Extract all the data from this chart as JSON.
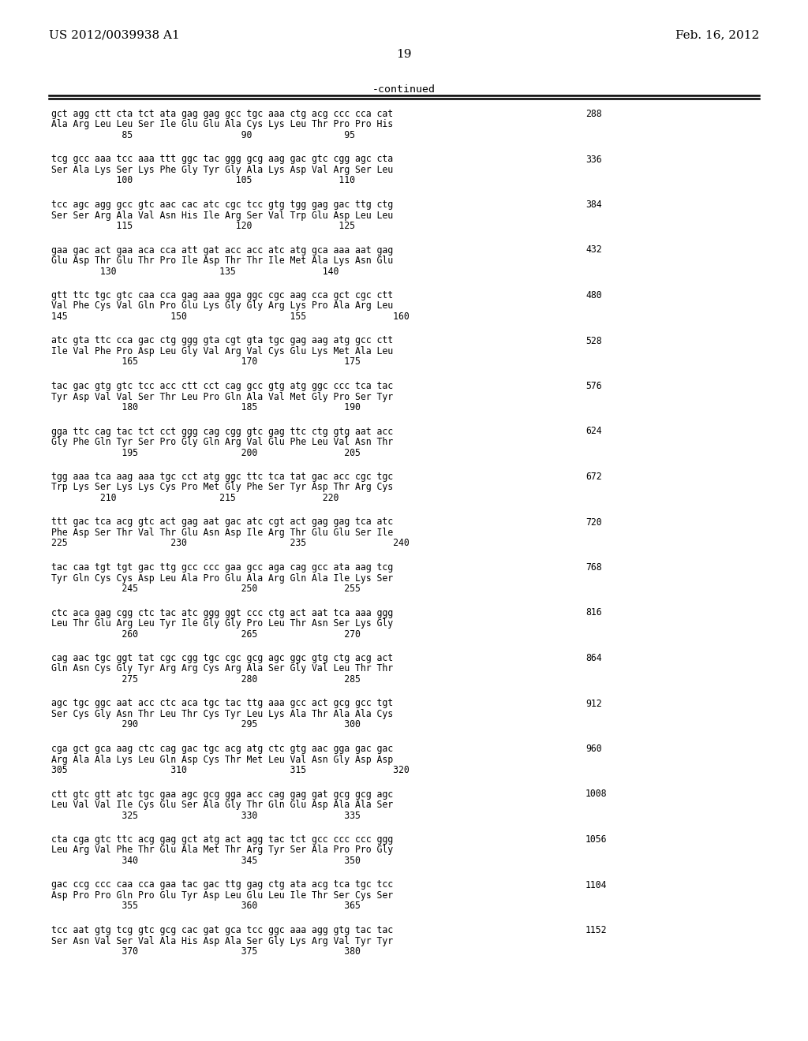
{
  "header_left": "US 2012/0039938 A1",
  "header_right": "Feb. 16, 2012",
  "page_number": "19",
  "continued_label": "-continued",
  "background_color": "#ffffff",
  "text_color": "#000000",
  "sequences": [
    {
      "dna": "gct agg ctt cta tct ata gag gag gcc tgc aaa ctg acg ccc cca cat",
      "aa": "Ala Arg Leu Leu Ser Ile Glu Glu Ala Cys Lys Leu Thr Pro Pro His",
      "nums": "             85                    90                 95",
      "num_right": "288"
    },
    {
      "dna": "tcg gcc aaa tcc aaa ttt ggc tac ggg gcg aag gac gtc cgg agc cta",
      "aa": "Ser Ala Lys Ser Lys Phe Gly Tyr Gly Ala Lys Asp Val Arg Ser Leu",
      "nums": "            100                   105                110",
      "num_right": "336"
    },
    {
      "dna": "tcc agc agg gcc gtc aac cac atc cgc tcc gtg tgg gag gac ttg ctg",
      "aa": "Ser Ser Arg Ala Val Asn His Ile Arg Ser Val Trp Glu Asp Leu Leu",
      "nums": "            115                   120                125",
      "num_right": "384"
    },
    {
      "dna": "gaa gac act gaa aca cca att gat acc acc atc atg gca aaa aat gag",
      "aa": "Glu Asp Thr Glu Thr Pro Ile Asp Thr Thr Ile Met Ala Lys Asn Glu",
      "nums": "         130                   135                140",
      "num_right": "432"
    },
    {
      "dna": "gtt ttc tgc gtc caa cca gag aaa gga ggc cgc aag cca gct cgc ctt",
      "aa": "Val Phe Cys Val Gln Pro Glu Lys Gly Gly Arg Lys Pro Ala Arg Leu",
      "nums": "145                   150                   155                160",
      "num_right": "480"
    },
    {
      "dna": "atc gta ttc cca gac ctg ggg gta cgt gta tgc gag aag atg gcc ctt",
      "aa": "Ile Val Phe Pro Asp Leu Gly Val Arg Val Cys Glu Lys Met Ala Leu",
      "nums": "             165                   170                175",
      "num_right": "528"
    },
    {
      "dna": "tac gac gtg gtc tcc acc ctt cct cag gcc gtg atg ggc ccc tca tac",
      "aa": "Tyr Asp Val Val Ser Thr Leu Pro Gln Ala Val Met Gly Pro Ser Tyr",
      "nums": "             180                   185                190",
      "num_right": "576"
    },
    {
      "dna": "gga ttc cag tac tct cct ggg cag cgg gtc gag ttc ctg gtg aat acc",
      "aa": "Gly Phe Gln Tyr Ser Pro Gly Gln Arg Val Glu Phe Leu Val Asn Thr",
      "nums": "             195                   200                205",
      "num_right": "624"
    },
    {
      "dna": "tgg aaa tca aag aaa tgc cct atg ggc ttc tca tat gac acc cgc tgc",
      "aa": "Trp Lys Ser Lys Lys Cys Pro Met Gly Phe Ser Tyr Asp Thr Arg Cys",
      "nums": "         210                   215                220",
      "num_right": "672"
    },
    {
      "dna": "ttt gac tca acg gtc act gag aat gac atc cgt act gag gag tca atc",
      "aa": "Phe Asp Ser Thr Val Thr Glu Asn Asp Ile Arg Thr Glu Glu Ser Ile",
      "nums": "225                   230                   235                240",
      "num_right": "720"
    },
    {
      "dna": "tac caa tgt tgt gac ttg gcc ccc gaa gcc aga cag gcc ata aag tcg",
      "aa": "Tyr Gln Cys Cys Asp Leu Ala Pro Glu Ala Arg Gln Ala Ile Lys Ser",
      "nums": "             245                   250                255",
      "num_right": "768"
    },
    {
      "dna": "ctc aca gag cgg ctc tac atc ggg ggt ccc ctg act aat tca aaa ggg",
      "aa": "Leu Thr Glu Arg Leu Tyr Ile Gly Gly Pro Leu Thr Asn Ser Lys Gly",
      "nums": "             260                   265                270",
      "num_right": "816"
    },
    {
      "dna": "cag aac tgc ggt tat cgc cgg tgc cgc gcg agc ggc gtg ctg acg act",
      "aa": "Gln Asn Cys Gly Tyr Arg Arg Cys Arg Ala Ser Gly Val Leu Thr Thr",
      "nums": "             275                   280                285",
      "num_right": "864"
    },
    {
      "dna": "agc tgc ggc aat acc ctc aca tgc tac ttg aaa gcc act gcg gcc tgt",
      "aa": "Ser Cys Gly Asn Thr Leu Thr Cys Tyr Leu Lys Ala Thr Ala Ala Cys",
      "nums": "             290                   295                300",
      "num_right": "912"
    },
    {
      "dna": "cga gct gca aag ctc cag gac tgc acg atg ctc gtg aac gga gac gac",
      "aa": "Arg Ala Ala Lys Leu Gln Asp Cys Thr Met Leu Val Asn Gly Asp Asp",
      "nums": "305                   310                   315                320",
      "num_right": "960"
    },
    {
      "dna": "ctt gtc gtt atc tgc gaa agc gcg gga acc cag gag gat gcg gcg agc",
      "aa": "Leu Val Val Ile Cys Glu Ser Ala Gly Thr Gln Glu Asp Ala Ala Ser",
      "nums": "             325                   330                335",
      "num_right": "1008"
    },
    {
      "dna": "cta cga gtc ttc acg gag gct atg act agg tac tct gcc ccc ccc ggg",
      "aa": "Leu Arg Val Phe Thr Glu Ala Met Thr Arg Tyr Ser Ala Pro Pro Gly",
      "nums": "             340                   345                350",
      "num_right": "1056"
    },
    {
      "dna": "gac ccg ccc caa cca gaa tac gac ttg gag ctg ata acg tca tgc tcc",
      "aa": "Asp Pro Pro Gln Pro Glu Tyr Asp Leu Glu Leu Ile Thr Ser Cys Ser",
      "nums": "             355                   360                365",
      "num_right": "1104"
    },
    {
      "dna": "tcc aat gtg tcg gtc gcg cac gat gca tcc ggc aaa agg gtg tac tac",
      "aa": "Ser Asn Val Ser Val Ala His Asp Ala Ser Gly Lys Arg Val Tyr Tyr",
      "nums": "             370                   375                380",
      "num_right": "1152"
    }
  ]
}
